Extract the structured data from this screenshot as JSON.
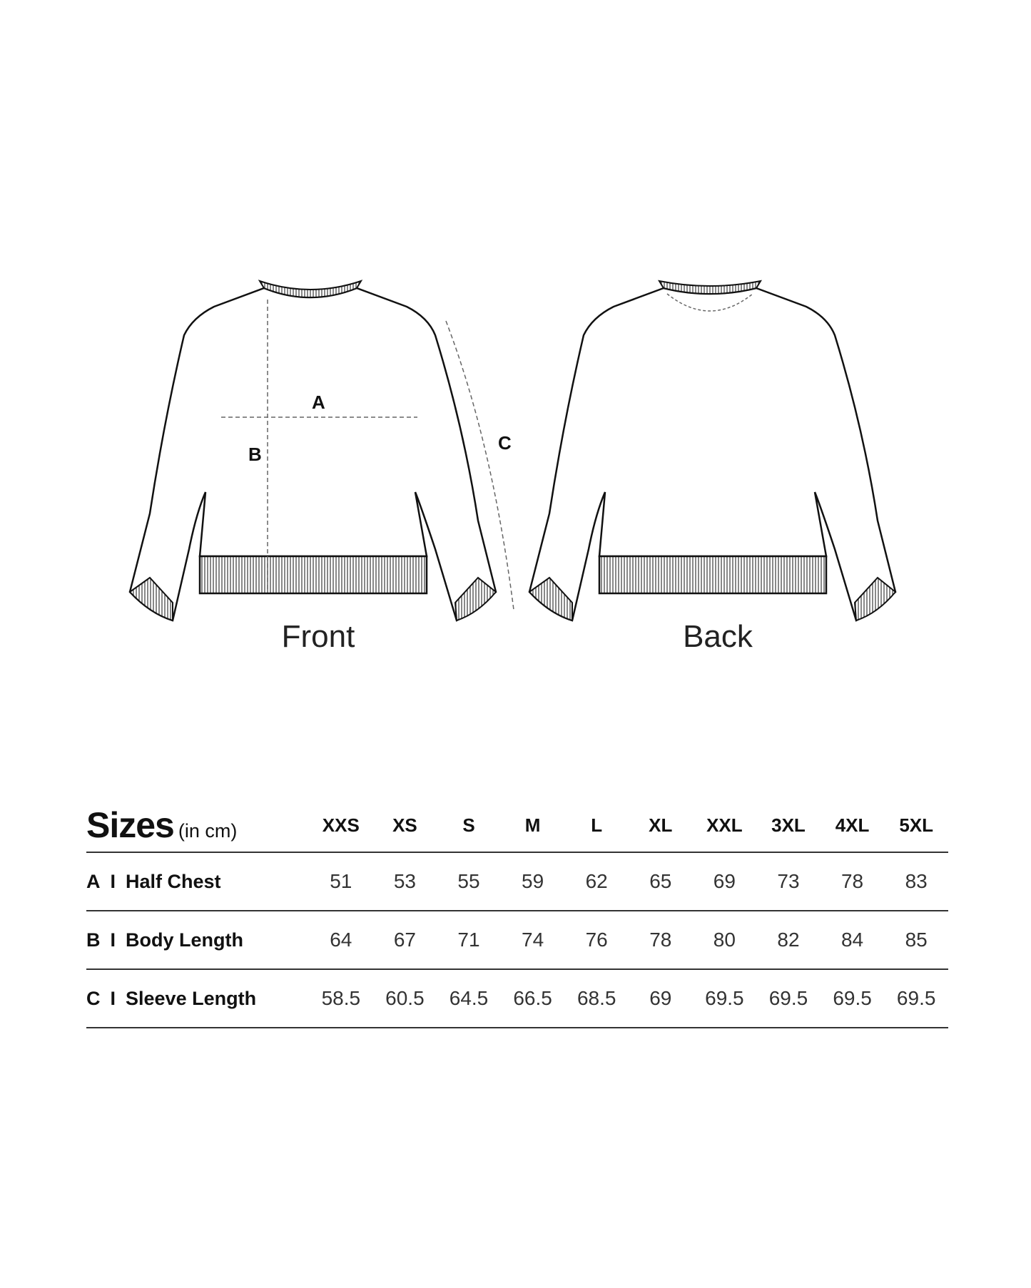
{
  "diagram": {
    "front_label": "Front",
    "back_label": "Back",
    "measure_labels": {
      "a": "A",
      "b": "B",
      "c": "C"
    }
  },
  "size_table": {
    "title": "Sizes",
    "unit": "(in cm)",
    "sizes": [
      "XXS",
      "XS",
      "S",
      "M",
      "L",
      "XL",
      "XXL",
      "3XL",
      "4XL",
      "5XL"
    ],
    "rows": [
      {
        "code": "A",
        "sep": "I",
        "name": "Half Chest",
        "values": [
          "51",
          "53",
          "55",
          "59",
          "62",
          "65",
          "69",
          "73",
          "78",
          "83"
        ]
      },
      {
        "code": "B",
        "sep": "I",
        "name": "Body Length",
        "values": [
          "64",
          "67",
          "71",
          "74",
          "76",
          "78",
          "80",
          "82",
          "84",
          "85"
        ]
      },
      {
        "code": "C",
        "sep": "I",
        "name": "Sleeve Length",
        "values": [
          "58.5",
          "60.5",
          "64.5",
          "66.5",
          "68.5",
          "69",
          "69.5",
          "69.5",
          "69.5",
          "69.5"
        ]
      }
    ]
  }
}
